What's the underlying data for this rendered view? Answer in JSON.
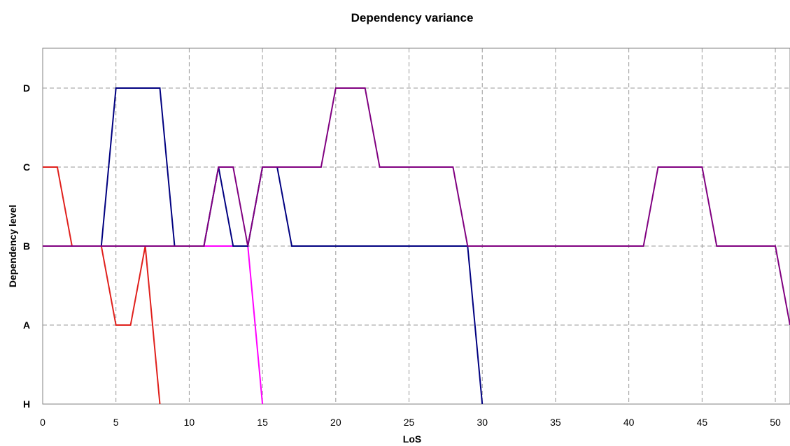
{
  "chart_data": {
    "type": "line",
    "title": "Dependency variance",
    "xlabel": "LoS",
    "ylabel": "Dependency level",
    "xlim": [
      0,
      51
    ],
    "x_ticks": [
      0,
      5,
      10,
      15,
      20,
      25,
      30,
      35,
      40,
      45,
      50
    ],
    "y_categories": [
      "H",
      "A",
      "B",
      "C",
      "D"
    ],
    "ylim": [
      0,
      4.5
    ],
    "grid": true,
    "legend": "none",
    "series": [
      {
        "color": "#ff00ff",
        "points": [
          [
            0,
            2
          ],
          [
            14,
            2
          ],
          [
            15,
            0
          ]
        ]
      },
      {
        "color": "#e0201c",
        "points": [
          [
            0,
            3
          ],
          [
            1,
            3
          ],
          [
            2,
            2
          ],
          [
            4,
            2
          ],
          [
            5,
            1
          ],
          [
            6,
            1
          ],
          [
            7,
            2
          ],
          [
            8,
            0
          ]
        ]
      },
      {
        "color": "#000080",
        "points": [
          [
            0,
            2
          ],
          [
            4,
            2
          ],
          [
            5,
            4
          ],
          [
            8,
            4
          ],
          [
            9,
            2
          ],
          [
            11,
            2
          ],
          [
            12,
            3
          ],
          [
            13,
            2
          ],
          [
            14,
            2
          ],
          [
            15,
            3
          ],
          [
            16,
            3
          ],
          [
            17,
            2
          ],
          [
            29,
            2
          ],
          [
            30,
            0
          ]
        ]
      },
      {
        "color": "#800080",
        "points": [
          [
            0,
            2
          ],
          [
            11,
            2
          ],
          [
            12,
            3
          ],
          [
            13,
            3
          ],
          [
            14,
            2
          ],
          [
            15,
            3
          ],
          [
            19,
            3
          ],
          [
            20,
            4
          ],
          [
            22,
            4
          ],
          [
            23,
            3
          ],
          [
            28,
            3
          ],
          [
            29,
            2
          ],
          [
            41,
            2
          ],
          [
            42,
            3
          ],
          [
            45,
            3
          ],
          [
            46,
            2
          ],
          [
            50,
            2
          ],
          [
            51,
            1
          ]
        ]
      }
    ]
  }
}
